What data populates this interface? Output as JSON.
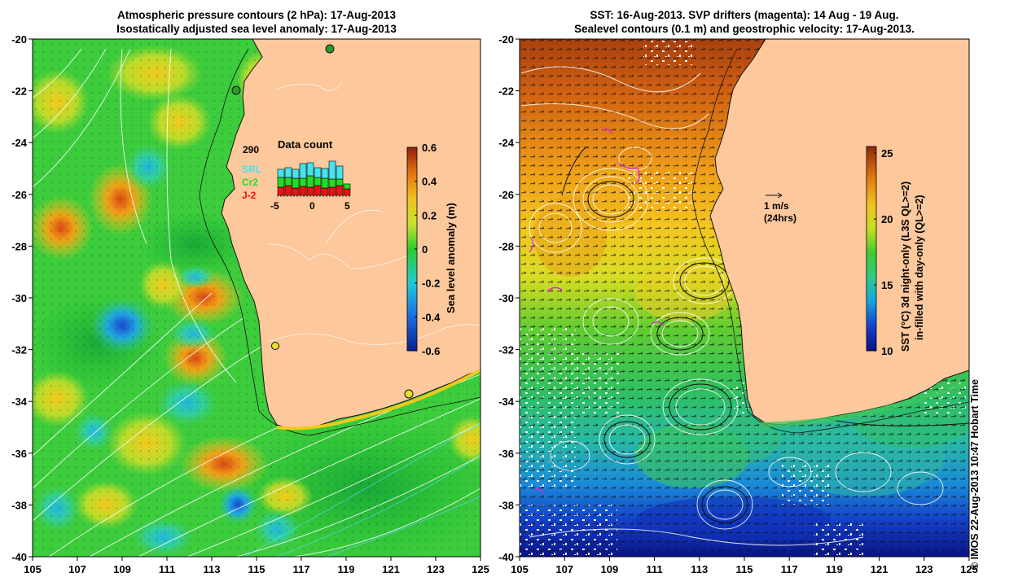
{
  "left_panel": {
    "title_line1": "Atmospheric pressure contours (2 hPa): 17-Aug-2013",
    "title_line2": "Isostatically adjusted sea level anomaly: 17-Aug-2013",
    "lat_ticks": [
      "-20",
      "-22",
      "-24",
      "-26",
      "-28",
      "-30",
      "-32",
      "-34",
      "-36",
      "-38",
      "-40"
    ],
    "lon_ticks": [
      "105",
      "107",
      "109",
      "111",
      "113",
      "115",
      "117",
      "119",
      "121",
      "123",
      "125"
    ],
    "colorbar": {
      "label": "Sea level anomaly (m)",
      "ticks": [
        "0.6",
        "0.4",
        "0.2",
        "0",
        "-0.2",
        "-0.4",
        "-0.6"
      ],
      "range": [
        -0.6,
        0.6
      ]
    },
    "data_count_inset": {
      "title": "Data count",
      "max_label": "290",
      "legend": [
        {
          "name": "SRL",
          "color": "#44e4f0"
        },
        {
          "name": "Cr2",
          "color": "#22dd22"
        },
        {
          "name": "J-2",
          "color": "#ee1111"
        }
      ],
      "x_ticks": [
        "-5",
        "0",
        "5"
      ]
    }
  },
  "right_panel": {
    "title_line1": "SST: 16-Aug-2013. SVP drifters (magenta): 14 Aug - 19 Aug.",
    "title_line2": "Sealevel contours (0.1 m) and geostrophic velocity: 17-Aug-2013.",
    "lat_ticks": [
      "-20",
      "-22",
      "-24",
      "-26",
      "-28",
      "-30",
      "-32",
      "-34",
      "-36",
      "-38",
      "-40"
    ],
    "lon_ticks": [
      "105",
      "107",
      "109",
      "111",
      "113",
      "115",
      "117",
      "119",
      "121",
      "123",
      "125"
    ],
    "colorbar": {
      "label_line1": "SST (°C) 3d night-only (L3S QL>=2)",
      "label_line2": "in-filled with day-only (QL>=2)",
      "ticks": [
        "25",
        "20",
        "15",
        "10"
      ],
      "range": [
        10,
        25.5
      ]
    },
    "velocity_scale_label": "1 m/s",
    "velocity_scale_sub": "(24hrs)"
  },
  "credit": "© IMOS 22-Aug-2013 10:47 Hobart Time",
  "colors": {
    "land": "#fcc89c",
    "ssla_low": "#1a3aa0",
    "ssla_mid": "#3ccc3c",
    "ssla_high": "#c8501a",
    "sst_cold": "#0a1e9a",
    "sst_warm": "#b0501a"
  }
}
